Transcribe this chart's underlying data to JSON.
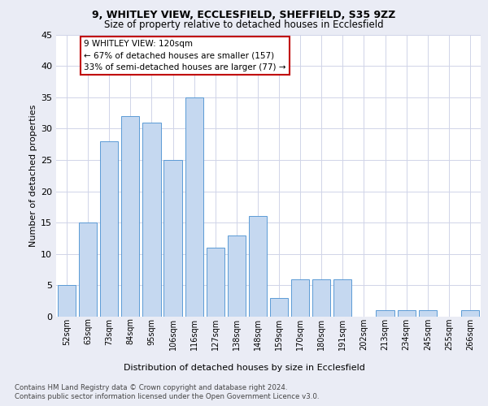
{
  "title1": "9, WHITLEY VIEW, ECCLESFIELD, SHEFFIELD, S35 9ZZ",
  "title2": "Size of property relative to detached houses in Ecclesfield",
  "xlabel": "Distribution of detached houses by size in Ecclesfield",
  "ylabel": "Number of detached properties",
  "categories": [
    "52sqm",
    "63sqm",
    "73sqm",
    "84sqm",
    "95sqm",
    "106sqm",
    "116sqm",
    "127sqm",
    "138sqm",
    "148sqm",
    "159sqm",
    "170sqm",
    "180sqm",
    "191sqm",
    "202sqm",
    "213sqm",
    "234sqm",
    "245sqm",
    "255sqm",
    "266sqm"
  ],
  "values": [
    5,
    15,
    28,
    32,
    31,
    25,
    35,
    11,
    13,
    16,
    3,
    6,
    6,
    6,
    0,
    1,
    1,
    1,
    0,
    1
  ],
  "bar_color": "#c5d8f0",
  "bar_edge_color": "#5b9bd5",
  "annotation_text": "9 WHITLEY VIEW: 120sqm\n← 67% of detached houses are smaller (157)\n33% of semi-detached houses are larger (77) →",
  "annotation_box_color": "#ffffff",
  "annotation_box_edge_color": "#c00000",
  "ylim": [
    0,
    45
  ],
  "yticks": [
    0,
    5,
    10,
    15,
    20,
    25,
    30,
    35,
    40,
    45
  ],
  "footer1": "Contains HM Land Registry data © Crown copyright and database right 2024.",
  "footer2": "Contains public sector information licensed under the Open Government Licence v3.0.",
  "background_color": "#eaecf5",
  "plot_bg_color": "#ffffff",
  "grid_color": "#d0d4e8"
}
